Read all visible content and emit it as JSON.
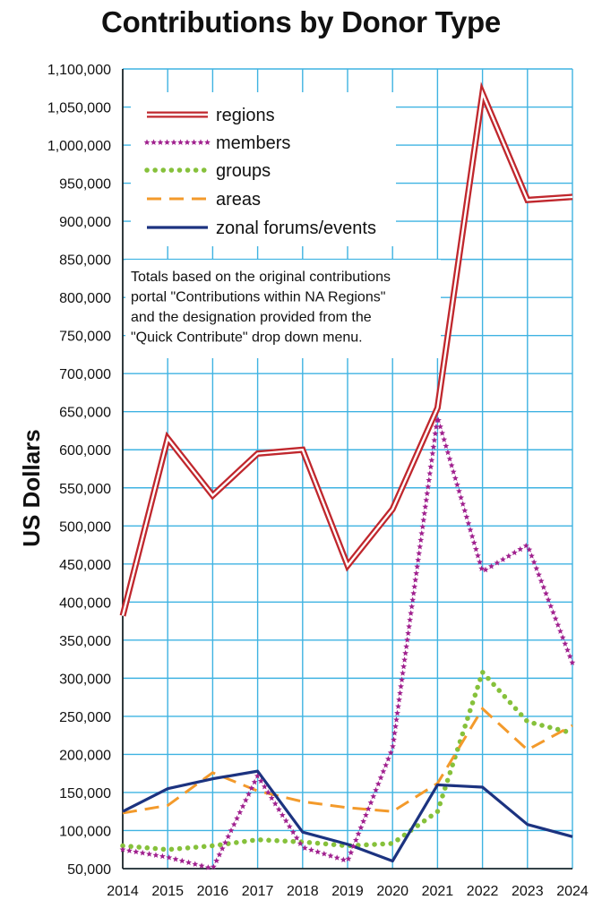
{
  "chart_data": {
    "type": "line",
    "title": "Contributions by Donor Type",
    "xlabel": "",
    "ylabel": "US Dollars",
    "x": [
      "2014",
      "2015",
      "2016",
      "2017",
      "2018",
      "2019",
      "2020",
      "2021",
      "2022",
      "2023",
      "2024"
    ],
    "ylim": [
      50000,
      1100000
    ],
    "yticks": [
      50000,
      100000,
      150000,
      200000,
      250000,
      300000,
      350000,
      400000,
      450000,
      500000,
      550000,
      600000,
      650000,
      700000,
      750000,
      800000,
      850000,
      900000,
      950000,
      1000000,
      1050000,
      1100000
    ],
    "ytick_labels": [
      "50,000",
      "100,000",
      "150,000",
      "200,000",
      "250,000",
      "300,000",
      "350,000",
      "400,000",
      "450,000",
      "500,000",
      "550,000",
      "600,000",
      "650,000",
      "700,000",
      "750,000",
      "800,000",
      "850,000",
      "900,000",
      "950,000",
      "1,000,000",
      "1,050,000",
      "1,100,000"
    ],
    "grid": true,
    "legend_position": "top-left",
    "series": [
      {
        "name": "regions",
        "color": "#c0272d",
        "style": "double",
        "values": [
          382000,
          615000,
          540000,
          595000,
          600000,
          448000,
          522000,
          655000,
          1068000,
          928000,
          932000
        ]
      },
      {
        "name": "members",
        "color": "#a0208e",
        "style": "stars",
        "values": [
          75000,
          65000,
          50000,
          172000,
          78000,
          60000,
          208000,
          643000,
          440000,
          475000,
          320000
        ]
      },
      {
        "name": "groups",
        "color": "#86c13b",
        "style": "dotted",
        "values": [
          80000,
          75000,
          80000,
          88000,
          85000,
          80000,
          83000,
          125000,
          308000,
          243000,
          228000
        ]
      },
      {
        "name": "areas",
        "color": "#f39a2b",
        "style": "dashed",
        "values": [
          123000,
          133000,
          176000,
          152000,
          138000,
          130000,
          125000,
          162000,
          260000,
          206000,
          238000
        ]
      },
      {
        "name": "zonal forums/events",
        "color": "#1c3380",
        "style": "solid",
        "values": [
          125000,
          155000,
          168000,
          178000,
          98000,
          82000,
          60000,
          160000,
          157000,
          108000,
          92000
        ]
      }
    ],
    "annotation": [
      "Totals based on the original contributions",
      "portal \"Contributions within NA Regions\"",
      "and the designation provided from the",
      "\"Quick Contribute\" drop down menu."
    ]
  }
}
